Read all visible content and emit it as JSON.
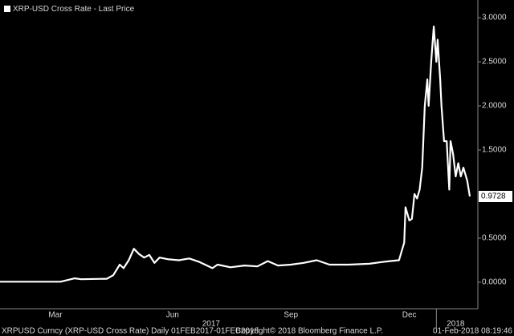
{
  "chart_data": {
    "type": "line",
    "x": [
      "2017-02-01",
      "2017-03-20",
      "2017-03-31",
      "2017-04-05",
      "2017-04-25",
      "2017-04-30",
      "2017-05-05",
      "2017-05-08",
      "2017-05-12",
      "2017-05-16",
      "2017-05-20",
      "2017-05-24",
      "2017-05-28",
      "2017-06-01",
      "2017-06-05",
      "2017-06-12",
      "2017-06-20",
      "2017-06-28",
      "2017-07-06",
      "2017-07-16",
      "2017-07-20",
      "2017-07-30",
      "2017-08-10",
      "2017-08-20",
      "2017-08-28",
      "2017-09-05",
      "2017-09-15",
      "2017-09-25",
      "2017-10-05",
      "2017-10-15",
      "2017-10-30",
      "2017-11-15",
      "2017-11-25",
      "2017-12-01",
      "2017-12-08",
      "2017-12-12",
      "2017-12-13",
      "2017-12-16",
      "2017-12-18",
      "2017-12-20",
      "2017-12-22",
      "2017-12-24",
      "2017-12-26",
      "2017-12-28",
      "2017-12-30",
      "2017-12-31",
      "2018-01-02",
      "2018-01-04",
      "2018-01-06",
      "2018-01-07",
      "2018-01-09",
      "2018-01-10",
      "2018-01-12",
      "2018-01-14",
      "2018-01-16",
      "2018-01-17",
      "2018-01-19",
      "2018-01-21",
      "2018-01-23",
      "2018-01-25",
      "2018-01-27",
      "2018-01-30",
      "2018-02-01"
    ],
    "series": [
      {
        "name": "XRP-USD Cross Rate - Last Price",
        "color": "#ffffff",
        "values": [
          0.0063,
          0.0065,
          0.045,
          0.035,
          0.04,
          0.08,
          0.2,
          0.16,
          0.25,
          0.38,
          0.32,
          0.28,
          0.31,
          0.22,
          0.28,
          0.26,
          0.25,
          0.27,
          0.23,
          0.16,
          0.2,
          0.17,
          0.19,
          0.18,
          0.24,
          0.19,
          0.2,
          0.22,
          0.25,
          0.2,
          0.2,
          0.21,
          0.23,
          0.24,
          0.25,
          0.45,
          0.85,
          0.7,
          0.72,
          1.0,
          0.95,
          1.05,
          1.3,
          2.0,
          2.3,
          2.0,
          2.5,
          2.9,
          2.5,
          2.75,
          2.3,
          2.0,
          1.6,
          1.6,
          1.05,
          1.6,
          1.45,
          1.2,
          1.35,
          1.2,
          1.3,
          1.15,
          0.9728
        ],
        "last_label": "0.9728"
      }
    ],
    "xlim": [
      "2017-02-01",
      "2018-02-01"
    ],
    "ylim": [
      -0.3,
      3.155
    ],
    "yticks": [
      {
        "value": 0,
        "label": "0.0000"
      },
      {
        "value": 0.5,
        "label": "0.5000"
      },
      {
        "value": 1.5,
        "label": "1.5000"
      },
      {
        "value": 2,
        "label": "2.0000"
      },
      {
        "value": 2.5,
        "label": "2.5000"
      },
      {
        "value": 3,
        "label": "3.0000"
      }
    ],
    "xticks": [
      {
        "value": "2017-03-16",
        "label": "Mar"
      },
      {
        "value": "2017-06-15",
        "label": "Jun"
      },
      {
        "value": "2017-09-15",
        "label": "Sep"
      },
      {
        "value": "2017-12-16",
        "label": "Dec"
      }
    ],
    "year_labels": [
      {
        "value": "2017-07-15",
        "label": "2017"
      },
      {
        "value": "2018-01-21",
        "label": "2018"
      }
    ],
    "year_separator": "2018-01-06",
    "footer": {
      "left": "XRPUSD Curncy (XRP-USD Cross Rate)  Daily 01FEB2017-01FEB2018",
      "center": "Copyright© 2018 Bloomberg Finance L.P.",
      "right": "01-Feb-2018 08:19:46"
    }
  }
}
